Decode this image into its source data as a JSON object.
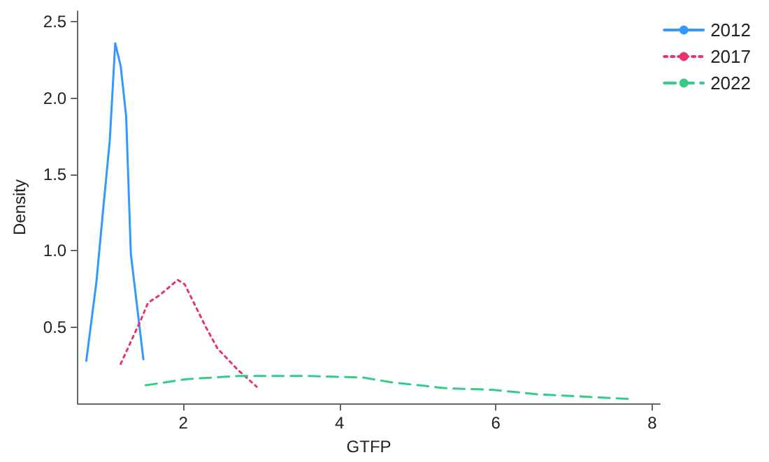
{
  "chart_data": {
    "type": "line",
    "xlabel": "GTFP",
    "ylabel": "Density",
    "xlim": [
      0.65,
      8.1
    ],
    "xticks": [
      2,
      4,
      6,
      8
    ],
    "ylim": [
      0,
      2.57
    ],
    "yticks": [
      0.5,
      {
        "value": 1,
        "label": "1.0"
      },
      1.5,
      {
        "value": 2,
        "label": "2.0"
      },
      2.5
    ],
    "grid": false,
    "legend": "top right",
    "marker": "none",
    "series": [
      {
        "name": "2012",
        "color": "#3399ff",
        "line_style": "solid",
        "x": [
          0.76,
          0.89,
          0.97,
          1.06,
          1.13,
          1.2,
          1.27,
          1.33,
          1.49
        ],
        "values": [
          0.28,
          0.8,
          1.24,
          1.72,
          2.36,
          2.21,
          1.88,
          0.98,
          0.29
        ]
      },
      {
        "name": "2017",
        "color": "#e8336b",
        "line_style": "dotted",
        "x": [
          1.2,
          1.46,
          1.55,
          1.7,
          1.93,
          2.02,
          2.29,
          2.44,
          2.7,
          2.94
        ],
        "values": [
          0.26,
          0.55,
          0.66,
          0.71,
          0.81,
          0.78,
          0.5,
          0.36,
          0.22,
          0.11
        ]
      },
      {
        "name": "2022",
        "color": "#33cc88",
        "line_style": "dashed",
        "x": [
          1.52,
          2.05,
          2.7,
          3.0,
          3.59,
          4.3,
          4.65,
          5.36,
          5.95,
          6.54,
          7.72
        ],
        "values": [
          0.12,
          0.16,
          0.18,
          0.18,
          0.18,
          0.17,
          0.14,
          0.1,
          0.09,
          0.06,
          0.03
        ]
      }
    ]
  }
}
